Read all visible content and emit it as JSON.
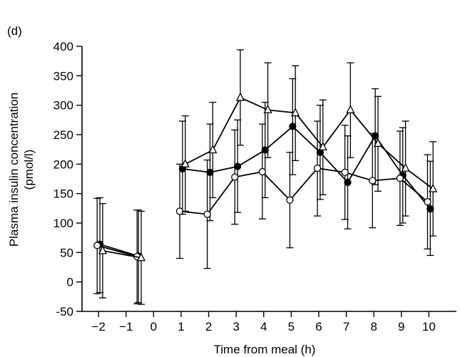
{
  "panel_label": "(d)",
  "chart_data": {
    "type": "line",
    "title": "",
    "xlabel": "Time from meal (h)",
    "ylabel": [
      "Plasma insulin concentration",
      "(pmol/l)"
    ],
    "xlim": [
      -2.6,
      11.0
    ],
    "ylim": [
      -50,
      400
    ],
    "xticks": [
      -2,
      -1,
      0,
      1,
      2,
      3,
      4,
      5,
      6,
      7,
      8,
      9,
      10
    ],
    "xtick_labels": [
      "−2",
      "−1",
      "0",
      "1",
      "2",
      "3",
      "4",
      "5",
      "6",
      "7",
      "8",
      "9",
      "10"
    ],
    "yticks": [
      -50,
      0,
      50,
      100,
      150,
      200,
      250,
      300,
      350,
      400
    ],
    "ytick_labels": [
      "-50",
      "0",
      "50",
      "100",
      "150",
      "200",
      "250",
      "300",
      "350",
      "400"
    ],
    "grid": false,
    "series": [
      {
        "marker": "filled-circle",
        "segments": [
          [
            {
              "x": -1.95,
              "y": 64,
              "lo": -18,
              "hi": 143
            },
            {
              "x": -0.55,
              "y": 44,
              "lo": -35,
              "hi": 122
            }
          ],
          [
            {
              "x": 1.05,
              "y": 192,
              "lo": 115,
              "hi": 273
            },
            {
              "x": 2.05,
              "y": 186,
              "lo": 104,
              "hi": 268
            },
            {
              "x": 3.05,
              "y": 196,
              "lo": 118,
              "hi": 275
            },
            {
              "x": 4.05,
              "y": 224,
              "lo": 143,
              "hi": 305
            },
            {
              "x": 5.05,
              "y": 264,
              "lo": 182,
              "hi": 345
            },
            {
              "x": 6.05,
              "y": 220,
              "lo": 140,
              "hi": 300
            },
            {
              "x": 7.05,
              "y": 169,
              "lo": 90,
              "hi": 248
            },
            {
              "x": 8.05,
              "y": 248,
              "lo": 165,
              "hi": 328
            },
            {
              "x": 9.05,
              "y": 181,
              "lo": 100,
              "hi": 262
            },
            {
              "x": 10.05,
              "y": 124,
              "lo": 45,
              "hi": 205
            }
          ]
        ]
      },
      {
        "marker": "open-circle",
        "segments": [
          [
            {
              "x": -2.05,
              "y": 62,
              "lo": -20,
              "hi": 142
            },
            {
              "x": -0.6,
              "y": 43,
              "lo": -37,
              "hi": 122
            }
          ],
          [
            {
              "x": 0.95,
              "y": 120,
              "lo": 40,
              "hi": 200
            },
            {
              "x": 1.95,
              "y": 115,
              "lo": 23,
              "hi": 207
            },
            {
              "x": 2.95,
              "y": 178,
              "lo": 98,
              "hi": 258
            },
            {
              "x": 3.95,
              "y": 187,
              "lo": 107,
              "hi": 268
            },
            {
              "x": 4.95,
              "y": 139,
              "lo": 58,
              "hi": 220
            },
            {
              "x": 5.95,
              "y": 193,
              "lo": 112,
              "hi": 273
            },
            {
              "x": 6.95,
              "y": 186,
              "lo": 106,
              "hi": 266
            },
            {
              "x": 7.95,
              "y": 172,
              "lo": 92,
              "hi": 252
            },
            {
              "x": 8.95,
              "y": 176,
              "lo": 96,
              "hi": 256
            },
            {
              "x": 9.95,
              "y": 136,
              "lo": 56,
              "hi": 216
            }
          ]
        ]
      },
      {
        "marker": "open-triangle",
        "segments": [
          [
            {
              "x": -1.85,
              "y": 53,
              "lo": -27,
              "hi": 133
            },
            {
              "x": -0.45,
              "y": 41,
              "lo": -38,
              "hi": 120
            }
          ],
          [
            {
              "x": 1.15,
              "y": 200,
              "lo": 120,
              "hi": 282
            },
            {
              "x": 2.15,
              "y": 224,
              "lo": 143,
              "hi": 305
            },
            {
              "x": 3.15,
              "y": 313,
              "lo": 232,
              "hi": 394
            },
            {
              "x": 4.15,
              "y": 292,
              "lo": 211,
              "hi": 372
            },
            {
              "x": 5.15,
              "y": 287,
              "lo": 206,
              "hi": 367
            },
            {
              "x": 6.15,
              "y": 229,
              "lo": 148,
              "hi": 309
            },
            {
              "x": 7.15,
              "y": 292,
              "lo": 211,
              "hi": 372
            },
            {
              "x": 8.15,
              "y": 235,
              "lo": 154,
              "hi": 315
            },
            {
              "x": 9.15,
              "y": 193,
              "lo": 112,
              "hi": 273
            },
            {
              "x": 10.15,
              "y": 158,
              "lo": 78,
              "hi": 238
            }
          ]
        ]
      }
    ]
  }
}
